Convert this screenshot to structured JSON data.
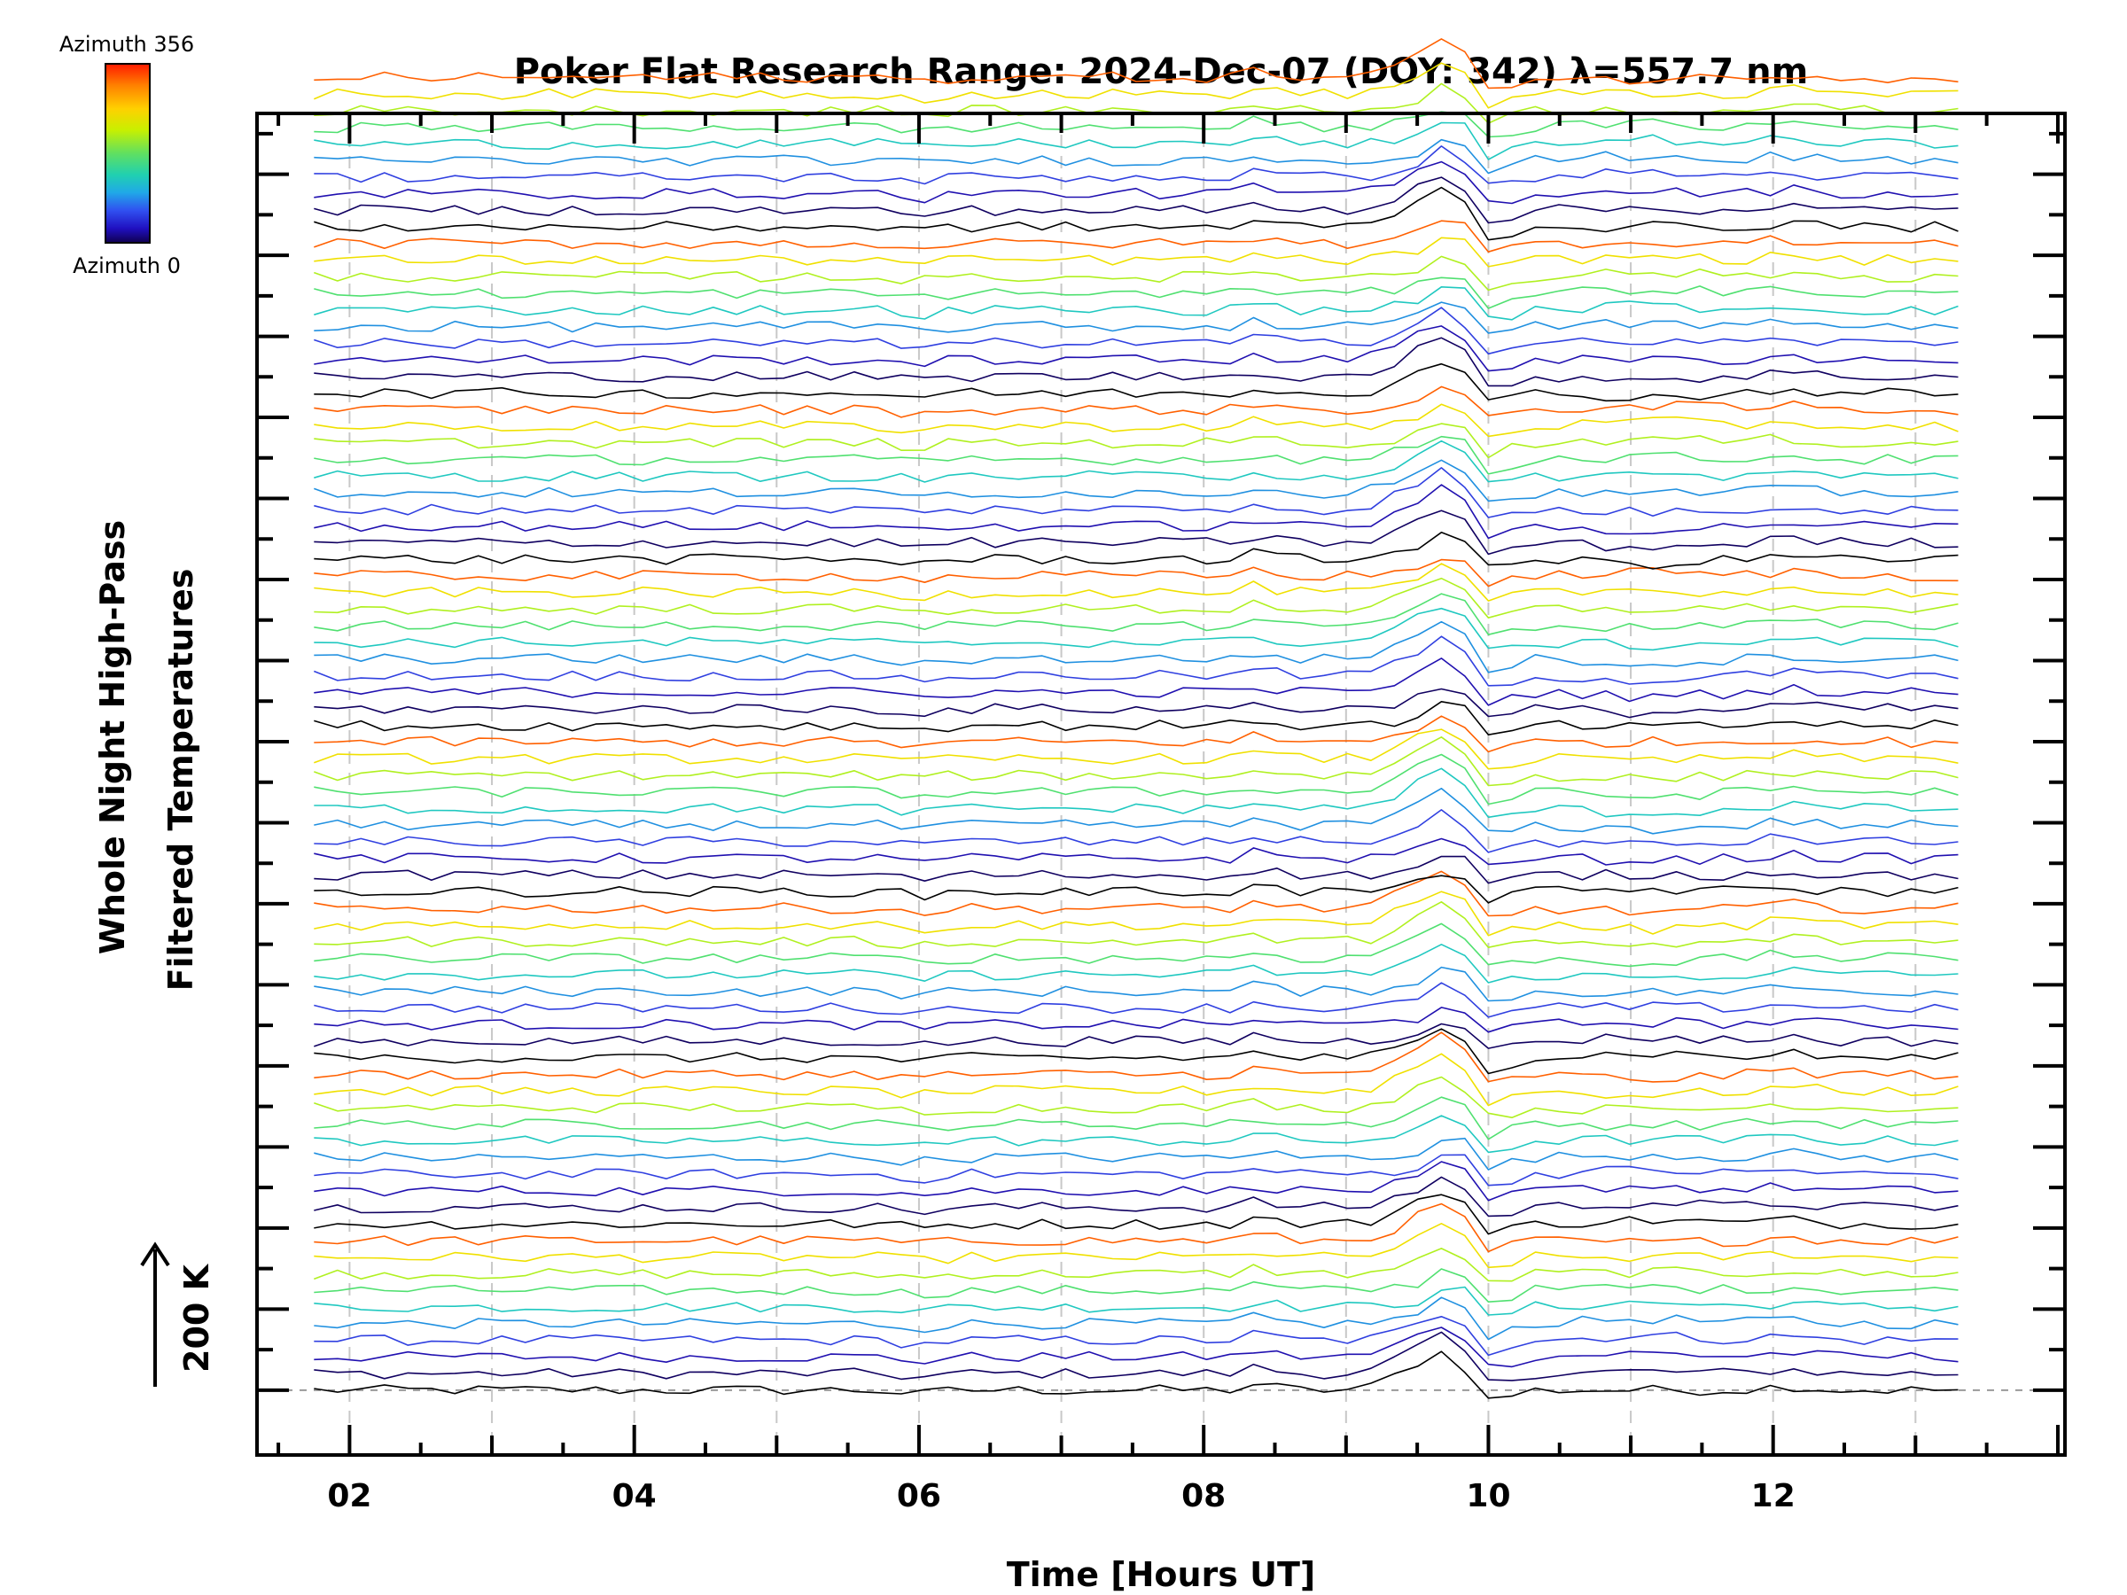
{
  "chart_data": {
    "type": "line",
    "title": "Poker Flat Research Range: 2024-Dec-07 (DOY: 342) λ=557.7 nm",
    "xlabel": "Time [Hours UT]",
    "ylabel_line1": "Whole Night High-Pass",
    "ylabel_line2": "Filtered Temperatures",
    "scale_label": "200 K",
    "colorbar": {
      "top_label": "Azimuth 356",
      "bottom_label": "Azimuth 0",
      "colors": [
        "#ff1a00",
        "#ff8000",
        "#ffd000",
        "#c8f000",
        "#60e060",
        "#20d0b0",
        "#20a8e8",
        "#3050f0",
        "#2010c0",
        "#100050"
      ]
    },
    "x_ticks": [
      "02",
      "04",
      "06",
      "08",
      "10",
      "12"
    ],
    "x_tick_values": [
      2,
      4,
      6,
      8,
      10,
      12
    ],
    "xlim": [
      1.35,
      14.05
    ],
    "x_start": 1.75,
    "x_end": 13.4,
    "n_series_per_group": 10,
    "n_groups": 8,
    "series_spacing_K": 41,
    "y_tick_spacing_K": 200,
    "y_ticks_count": 14,
    "ylim": [
      -160,
      3150
    ],
    "series_colors": [
      "#000000",
      "#100060",
      "#2010b0",
      "#3040e0",
      "#2090e0",
      "#20c8c0",
      "#50e070",
      "#b0f020",
      "#f0e000",
      "#ff6000"
    ],
    "grid": "x-dashed",
    "baseline_dashed": true
  }
}
